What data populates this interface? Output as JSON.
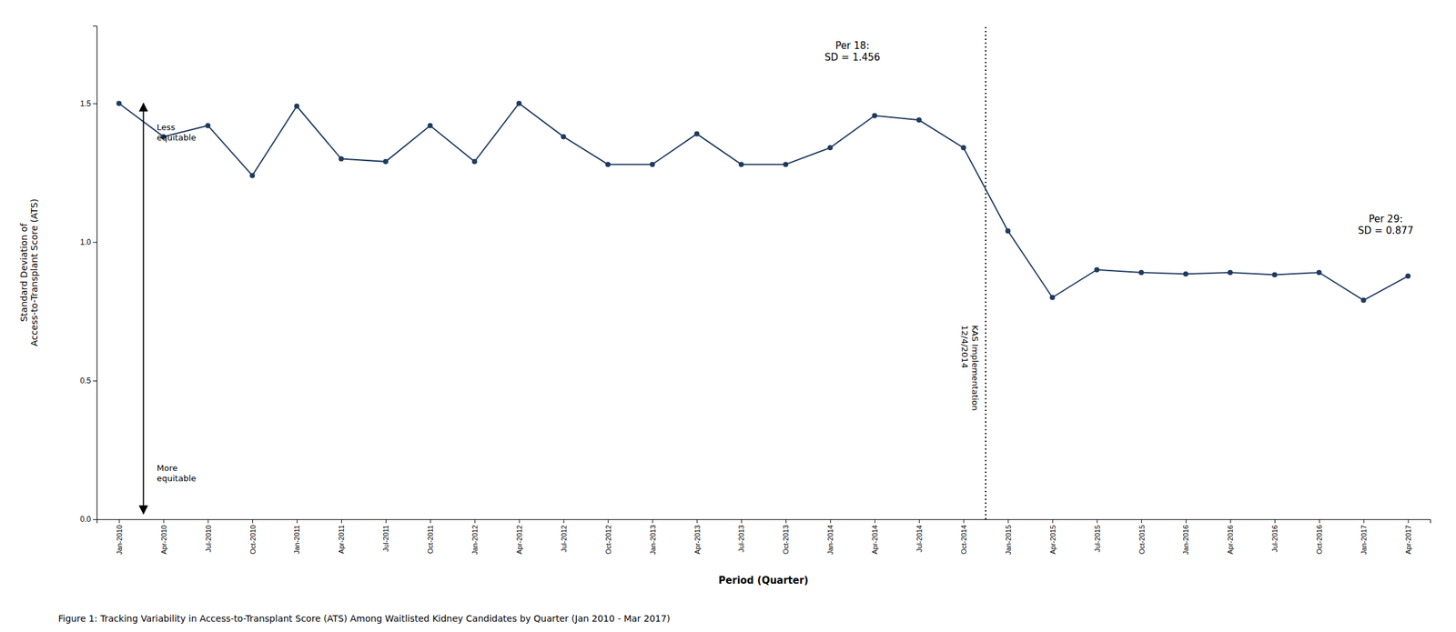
{
  "chart_data": {
    "type": "line",
    "title": "Figure 1:  Tracking Variability in Access-to-Transplant Score (ATS) Among Waitlisted Kidney Candidates by Quarter (Jan 2010 - Mar 2017)",
    "x_label": "Period (Quarter)",
    "y_label": "Standard Deviation of\nAccess-to-Transplant Score (ATS)",
    "categories": [
      "Jan-2010",
      "Apr-2010",
      "Jul-2010",
      "Oct-2010",
      "Jan-2011",
      "Apr-2011",
      "Jul-2011",
      "Oct-2011",
      "Jan-2012",
      "Apr-2012",
      "Jul-2012",
      "Oct-2012",
      "Jan-2013",
      "Apr-2013",
      "Jul-2013",
      "Oct-2013",
      "Jan-2014",
      "Apr-2014",
      "Jul-2014",
      "Oct-2014",
      "Jan-2015",
      "Apr-2015",
      "Jul-2015",
      "Oct-2015",
      "Jan-2016",
      "Apr-2016",
      "Jul-2016",
      "Oct-2016",
      "Jan-2017",
      "Apr-2017"
    ],
    "values": [
      1.5,
      1.38,
      1.42,
      1.24,
      1.49,
      1.3,
      1.29,
      1.42,
      1.29,
      1.5,
      1.38,
      1.28,
      1.28,
      1.39,
      1.28,
      1.28,
      1.34,
      1.456,
      1.44,
      1.34,
      1.04,
      0.8,
      0.9,
      0.89,
      0.885,
      0.89,
      0.882,
      0.89,
      0.79,
      0.877
    ],
    "color": "#1e3a5f",
    "marker": "circle",
    "ylim": [
      0.0,
      1.78
    ],
    "yticks": [
      {
        "value": 0.0,
        "label": "0.0"
      },
      {
        "value": 0.5,
        "label": "0.5"
      },
      {
        "value": 1.0,
        "label": "1.0"
      },
      {
        "value": 1.5,
        "label": "1.5"
      }
    ],
    "grid": false,
    "annotations": [
      {
        "text": "KAS Implementation\n12/4/2014",
        "x": 19.5
      },
      {
        "text": "Per 18:\nSD = 1.456"
      },
      {
        "text": "Per 29:\nSD = 0.877"
      },
      {
        "text": "Less\nequitable"
      },
      {
        "text": "More\nequitable"
      }
    ]
  }
}
